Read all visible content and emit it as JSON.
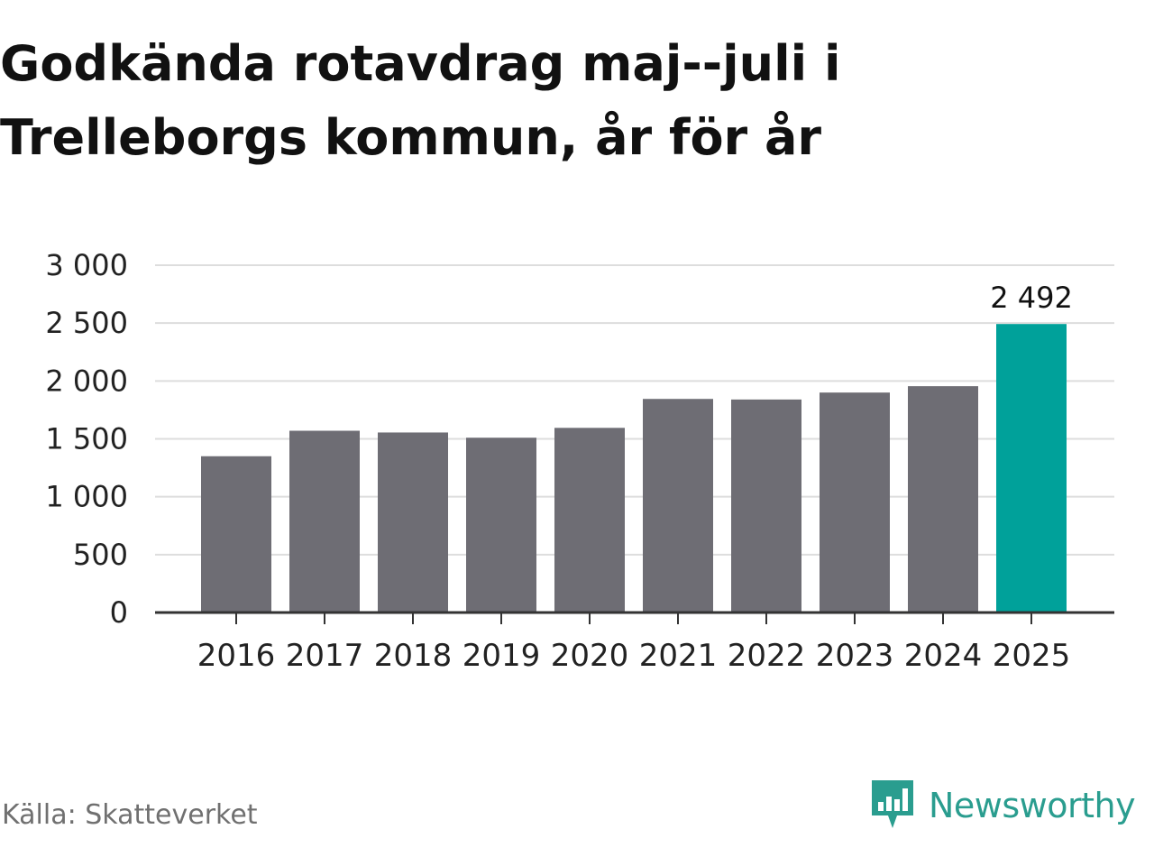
{
  "title_lines": [
    "Godkända rotavdrag maj--juli i",
    "Trelleborgs kommun, år för år"
  ],
  "source": "Källa: Skatteverket",
  "brand": {
    "name": "Newsworthy",
    "logo_icon": "newsworthy-logo-icon",
    "color": "#2a9d8f"
  },
  "colors": {
    "bar": "#6e6d74",
    "highlight": "#00a19a",
    "grid": "#dddddd",
    "axis": "#333333"
  },
  "chart_data": {
    "type": "bar",
    "title": "Godkända rotavdrag maj--juli i Trelleborgs kommun, år för år",
    "xlabel": "",
    "ylabel": "",
    "categories": [
      "2016",
      "2017",
      "2018",
      "2019",
      "2020",
      "2021",
      "2022",
      "2023",
      "2024",
      "2025"
    ],
    "values": [
      1350,
      1570,
      1555,
      1510,
      1595,
      1845,
      1840,
      1900,
      1955,
      2492
    ],
    "highlight_index": 9,
    "data_labels": [
      {
        "index": 9,
        "text": "2 492"
      }
    ],
    "ylim": [
      0,
      3000
    ],
    "yticks": [
      0,
      500,
      1000,
      1500,
      2000,
      2500,
      3000
    ],
    "ytick_labels": [
      "0",
      "500",
      "1 000",
      "1 500",
      "2 000",
      "2 500",
      "3 000"
    ],
    "grid": true,
    "legend": "none"
  }
}
